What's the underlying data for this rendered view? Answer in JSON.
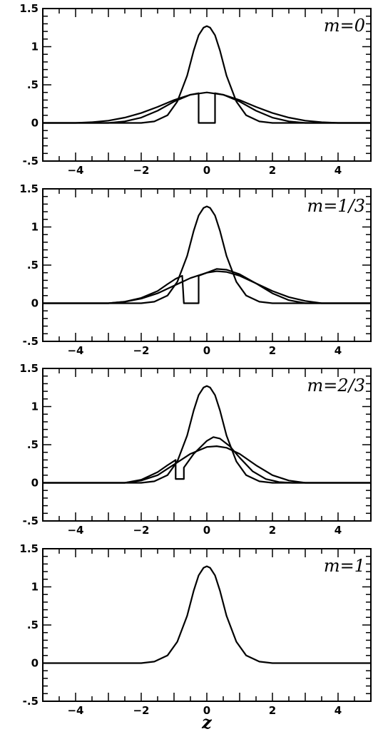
{
  "chart_data": [
    {
      "type": "line",
      "panel_label": "m=0",
      "xlim": [
        -5,
        5
      ],
      "ylim": [
        -0.5,
        1.5
      ],
      "x_ticks": [
        -4,
        -2,
        0,
        2,
        4
      ],
      "x_tick_labels": [
        "−4",
        "−2",
        "0",
        "2",
        "4"
      ],
      "y_ticks": [
        -0.5,
        0,
        0.5,
        1,
        1.5
      ],
      "y_tick_labels": [
        "-.5",
        "0",
        ".5",
        "1",
        "1.5"
      ],
      "series": [
        {
          "x": [
            -5,
            -2,
            -1.6,
            -1.2,
            -0.9,
            -0.6,
            -0.4,
            -0.25,
            -0.1,
            0,
            0.1,
            0.25,
            0.4,
            0.6,
            0.9,
            1.2,
            1.6,
            2,
            5
          ],
          "y": [
            0,
            0,
            0.02,
            0.1,
            0.28,
            0.62,
            0.95,
            1.15,
            1.25,
            1.27,
            1.25,
            1.15,
            0.95,
            0.62,
            0.28,
            0.1,
            0.02,
            0,
            0
          ]
        },
        {
          "x": [
            -5,
            -4,
            -3.5,
            -3,
            -2.5,
            -2,
            -1.5,
            -1,
            -0.5,
            0,
            0.5,
            1,
            1.5,
            2,
            2.5,
            3,
            3.5,
            4,
            5
          ],
          "y": [
            0,
            0,
            0.01,
            0.03,
            0.07,
            0.13,
            0.21,
            0.3,
            0.37,
            0.4,
            0.37,
            0.3,
            0.21,
            0.13,
            0.07,
            0.03,
            0.01,
            0,
            0
          ]
        },
        {
          "x": [
            -5,
            -3,
            -2.5,
            -2,
            -1.5,
            -1,
            -0.5,
            -0.25,
            -0.25,
            0.25,
            0.25,
            0.5,
            1,
            1.5,
            2,
            2.5,
            3,
            5
          ],
          "y": [
            0,
            0,
            0.02,
            0.07,
            0.16,
            0.28,
            0.37,
            0.39,
            0,
            0,
            0.39,
            0.37,
            0.28,
            0.16,
            0.07,
            0.02,
            0,
            0
          ]
        }
      ]
    },
    {
      "type": "line",
      "panel_label": "m=1/3",
      "xlim": [
        -5,
        5
      ],
      "ylim": [
        -0.5,
        1.5
      ],
      "x_ticks": [
        -4,
        -2,
        0,
        2,
        4
      ],
      "x_tick_labels": [
        "−4",
        "−2",
        "0",
        "2",
        "4"
      ],
      "y_ticks": [
        -0.5,
        0,
        0.5,
        1,
        1.5
      ],
      "y_tick_labels": [
        "-.5",
        "0",
        ".5",
        "1",
        "1.5"
      ],
      "series": [
        {
          "x": [
            -5,
            -2,
            -1.6,
            -1.2,
            -0.9,
            -0.6,
            -0.4,
            -0.25,
            -0.1,
            0,
            0.1,
            0.25,
            0.4,
            0.6,
            0.9,
            1.2,
            1.6,
            2,
            5
          ],
          "y": [
            0,
            0,
            0.02,
            0.1,
            0.28,
            0.62,
            0.95,
            1.15,
            1.25,
            1.27,
            1.25,
            1.15,
            0.95,
            0.62,
            0.28,
            0.1,
            0.02,
            0,
            0
          ]
        },
        {
          "x": [
            -5,
            -3,
            -2.5,
            -2,
            -1.5,
            -1,
            -0.5,
            0,
            0.3,
            0.6,
            1,
            1.5,
            2,
            2.5,
            3,
            3.5,
            5
          ],
          "y": [
            0,
            0,
            0.02,
            0.06,
            0.13,
            0.23,
            0.33,
            0.4,
            0.42,
            0.41,
            0.36,
            0.26,
            0.16,
            0.08,
            0.03,
            0,
            0
          ]
        },
        {
          "x": [
            -5,
            -3,
            -2.5,
            -2,
            -1.5,
            -1.2,
            -0.95,
            -0.75,
            -0.7,
            -0.25,
            -0.25,
            0,
            0.3,
            0.6,
            1,
            1.5,
            2,
            2.5,
            3,
            5
          ],
          "y": [
            0,
            0,
            0.02,
            0.07,
            0.16,
            0.25,
            0.32,
            0.36,
            0,
            0,
            0.36,
            0.4,
            0.45,
            0.44,
            0.38,
            0.26,
            0.13,
            0.04,
            0,
            0
          ]
        }
      ]
    },
    {
      "type": "line",
      "panel_label": "m=2/3",
      "xlim": [
        -5,
        5
      ],
      "ylim": [
        -0.5,
        1.5
      ],
      "x_ticks": [
        -4,
        -2,
        0,
        2,
        4
      ],
      "x_tick_labels": [
        "−4",
        "−2",
        "0",
        "2",
        "4"
      ],
      "y_ticks": [
        -0.5,
        0,
        0.5,
        1,
        1.5
      ],
      "y_tick_labels": [
        "-.5",
        "0",
        ".5",
        "1",
        "1.5"
      ],
      "series": [
        {
          "x": [
            -5,
            -2,
            -1.6,
            -1.2,
            -0.9,
            -0.6,
            -0.4,
            -0.25,
            -0.1,
            0,
            0.1,
            0.25,
            0.4,
            0.6,
            0.9,
            1.2,
            1.6,
            2,
            5
          ],
          "y": [
            0,
            0,
            0.02,
            0.1,
            0.28,
            0.62,
            0.95,
            1.15,
            1.25,
            1.27,
            1.25,
            1.15,
            0.95,
            0.62,
            0.28,
            0.1,
            0.02,
            0,
            0
          ]
        },
        {
          "x": [
            -5,
            -2.5,
            -2,
            -1.5,
            -1,
            -0.5,
            0,
            0.3,
            0.6,
            1,
            1.5,
            2,
            2.5,
            3,
            5
          ],
          "y": [
            0,
            0,
            0.03,
            0.1,
            0.24,
            0.38,
            0.47,
            0.48,
            0.46,
            0.38,
            0.23,
            0.1,
            0.03,
            0,
            0
          ]
        },
        {
          "x": [
            -5,
            -2.5,
            -2,
            -1.5,
            -1.2,
            -0.95,
            -0.95,
            -0.7,
            -0.7,
            -0.4,
            0,
            0.2,
            0.4,
            0.7,
            1,
            1.4,
            1.8,
            2.2,
            2.6,
            5
          ],
          "y": [
            0,
            0,
            0.04,
            0.14,
            0.23,
            0.3,
            0.05,
            0.05,
            0.2,
            0.38,
            0.55,
            0.6,
            0.58,
            0.48,
            0.33,
            0.15,
            0.05,
            0.01,
            0,
            0
          ]
        }
      ]
    },
    {
      "type": "line",
      "panel_label": "m=1",
      "xlabel": "z",
      "xlim": [
        -5,
        5
      ],
      "ylim": [
        -0.5,
        1.5
      ],
      "x_ticks": [
        -4,
        -2,
        0,
        2,
        4
      ],
      "x_tick_labels": [
        "−4",
        "−2",
        "0",
        "2",
        "4"
      ],
      "y_ticks": [
        -0.5,
        0,
        0.5,
        1,
        1.5
      ],
      "y_tick_labels": [
        "-.5",
        "0",
        ".5",
        "1",
        "1.5"
      ],
      "series": [
        {
          "x": [
            -5,
            -2,
            -1.6,
            -1.2,
            -0.9,
            -0.6,
            -0.4,
            -0.25,
            -0.1,
            0,
            0.1,
            0.25,
            0.4,
            0.6,
            0.9,
            1.2,
            1.6,
            2,
            5
          ],
          "y": [
            0,
            0,
            0.02,
            0.1,
            0.28,
            0.62,
            0.95,
            1.15,
            1.25,
            1.27,
            1.25,
            1.15,
            0.95,
            0.62,
            0.28,
            0.1,
            0.02,
            0,
            0
          ]
        }
      ]
    }
  ]
}
